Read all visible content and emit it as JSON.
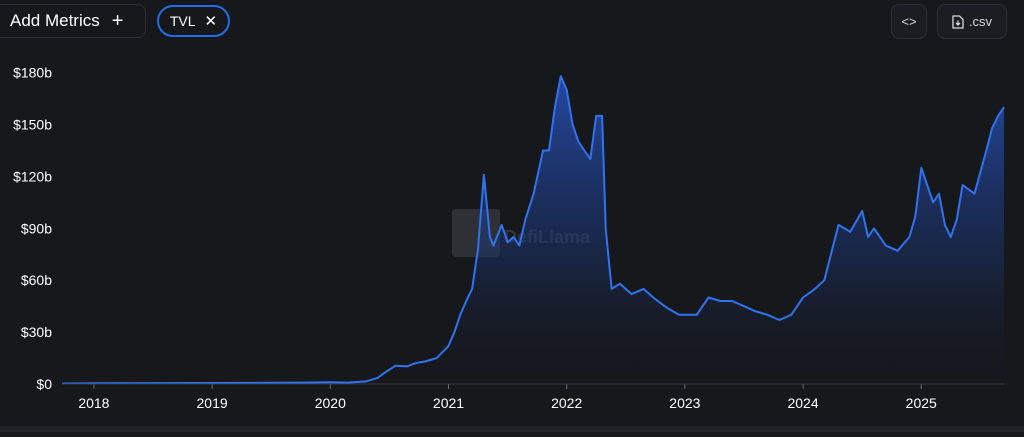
{
  "toolbar": {
    "add_metrics_label": "Add Metrics",
    "plus_icon": "+",
    "metric_chip_label": "TVL",
    "close_icon": "✕",
    "embed_icon": "<>",
    "csv_label": ".csv"
  },
  "watermark": "DefiLlama",
  "colors": {
    "line": "#2f73f0",
    "background": "#17181c",
    "accent": "#1f6feb"
  },
  "chart_data": {
    "type": "area",
    "title": "",
    "xlabel": "",
    "ylabel": "",
    "y_tick_labels": [
      "$0",
      "$30b",
      "$60b",
      "$90b",
      "$120b",
      "$150b",
      "$180b"
    ],
    "y_ticks": [
      0,
      30,
      60,
      90,
      120,
      150,
      180
    ],
    "ylim": [
      0,
      185
    ],
    "x_tick_labels": [
      "2018",
      "2019",
      "2020",
      "2021",
      "2022",
      "2023",
      "2024",
      "2025"
    ],
    "x_ticks": [
      2018,
      2019,
      2020,
      2021,
      2022,
      2023,
      2024,
      2025
    ],
    "xlim": [
      2017.73,
      2025.7
    ],
    "grid": false,
    "series": [
      {
        "unit": "USD billions",
        "x": [
          2017.73,
          2018.0,
          2018.5,
          2019.0,
          2019.5,
          2019.75,
          2020.0,
          2020.15,
          2020.3,
          2020.4,
          2020.45,
          2020.55,
          2020.65,
          2020.72,
          2020.8,
          2020.9,
          2021.0,
          2021.05,
          2021.1,
          2021.15,
          2021.2,
          2021.25,
          2021.3,
          2021.35,
          2021.38,
          2021.45,
          2021.5,
          2021.55,
          2021.6,
          2021.65,
          2021.72,
          2021.8,
          2021.85,
          2021.9,
          2021.95,
          2022.0,
          2022.05,
          2022.1,
          2022.15,
          2022.2,
          2022.25,
          2022.3,
          2022.33,
          2022.38,
          2022.45,
          2022.55,
          2022.65,
          2022.75,
          2022.85,
          2022.95,
          2023.1,
          2023.2,
          2023.3,
          2023.4,
          2023.5,
          2023.6,
          2023.7,
          2023.8,
          2023.9,
          2024.0,
          2024.1,
          2024.18,
          2024.3,
          2024.4,
          2024.5,
          2024.55,
          2024.6,
          2024.7,
          2024.8,
          2024.9,
          2024.95,
          2025.0,
          2025.05,
          2025.1,
          2025.15,
          2025.2,
          2025.25,
          2025.3,
          2025.35,
          2025.45,
          2025.55,
          2025.6,
          2025.65,
          2025.7
        ],
        "values": [
          0.3,
          0.4,
          0.5,
          0.6,
          0.7,
          0.8,
          1.0,
          0.8,
          1.5,
          3.5,
          6.0,
          10.5,
          10.2,
          12.0,
          13.0,
          15.0,
          22.0,
          30.0,
          40.0,
          48.0,
          55.0,
          78.0,
          121.0,
          85.0,
          80.0,
          92.0,
          82.0,
          85.0,
          80.0,
          95.0,
          110.0,
          135.0,
          135.0,
          160.0,
          178.0,
          170.0,
          150.0,
          140.0,
          135.0,
          130.0,
          155.0,
          155.0,
          90.0,
          55.0,
          58.0,
          52.0,
          55.0,
          49.0,
          44.0,
          40.0,
          40.0,
          50.0,
          48.0,
          48.0,
          45.0,
          42.0,
          40.0,
          37.0,
          40.0,
          50.0,
          55.0,
          60.0,
          92.0,
          88.0,
          100.0,
          85.0,
          90.0,
          80.0,
          77.0,
          85.0,
          97.0,
          125.0,
          115.0,
          105.0,
          110.0,
          92.0,
          85.0,
          95.0,
          115.0,
          110.0,
          135.0,
          148.0,
          155.0,
          160.0
        ]
      }
    ]
  }
}
